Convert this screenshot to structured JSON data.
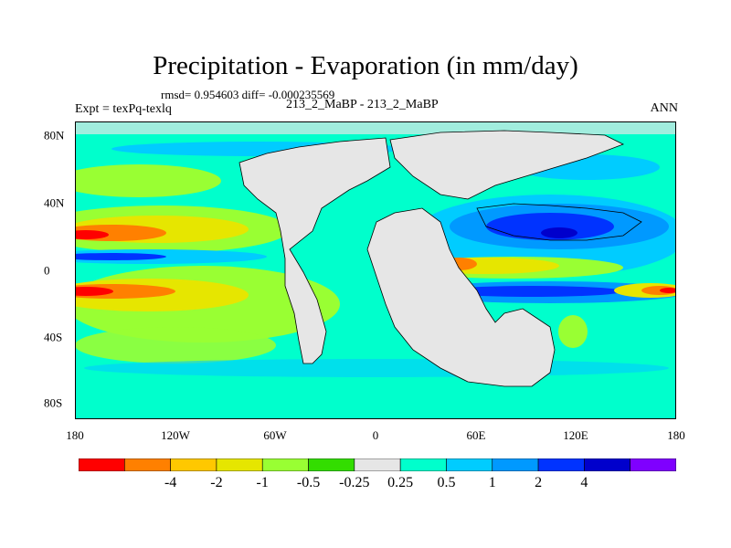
{
  "figure": {
    "title": "Precipitation - Evaporation (in mm/day)",
    "stats": "rmsd= 0.954603 diff= -0.000235569",
    "experiment": "Expt = texPq-texlq",
    "case_label": "213_2_MaBP - 213_2_MaBP",
    "season": "ANN"
  },
  "axes": {
    "x_ticks": [
      "180",
      "120W",
      "60W",
      "0",
      "60E",
      "120E",
      "180"
    ],
    "y_ticks": [
      "80N",
      "40N",
      "0",
      "40S",
      "80S"
    ]
  },
  "colorbar": {
    "colors": [
      "#ff0000",
      "#ff8000",
      "#ffc800",
      "#e6e600",
      "#99ff33",
      "#33dd00",
      "#e6e6e6",
      "#00ffcc",
      "#00ccff",
      "#0099ff",
      "#0033ff",
      "#0000cc",
      "#7f00ff"
    ],
    "labels": [
      "-4",
      "-2",
      "-1",
      "-0.5",
      "-0.25",
      "0.25",
      "0.5",
      "1",
      "2",
      "4"
    ]
  },
  "palette": {
    "land": "#e6e6e6",
    "ocean_base": "#00ffcc"
  }
}
